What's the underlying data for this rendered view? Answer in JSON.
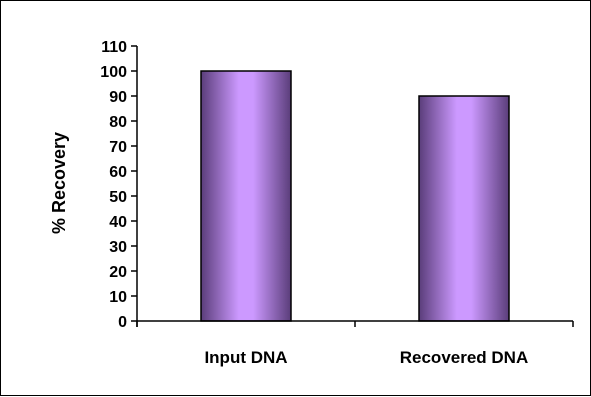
{
  "chart_data": {
    "type": "bar",
    "title": "",
    "xlabel": "",
    "ylabel": "% Recovery",
    "ylim": [
      0,
      110
    ],
    "yticks": [
      0,
      10,
      20,
      30,
      40,
      50,
      60,
      70,
      80,
      90,
      100,
      110
    ],
    "categories": [
      "Input DNA",
      "Recovered DNA"
    ],
    "values": [
      100,
      90
    ],
    "grid": false,
    "legend": "none",
    "colors": {
      "bar_edge": "#5a3d7a",
      "bar_center": "#cc99ff",
      "bar_outline": "#000000",
      "axis": "#000000"
    }
  }
}
